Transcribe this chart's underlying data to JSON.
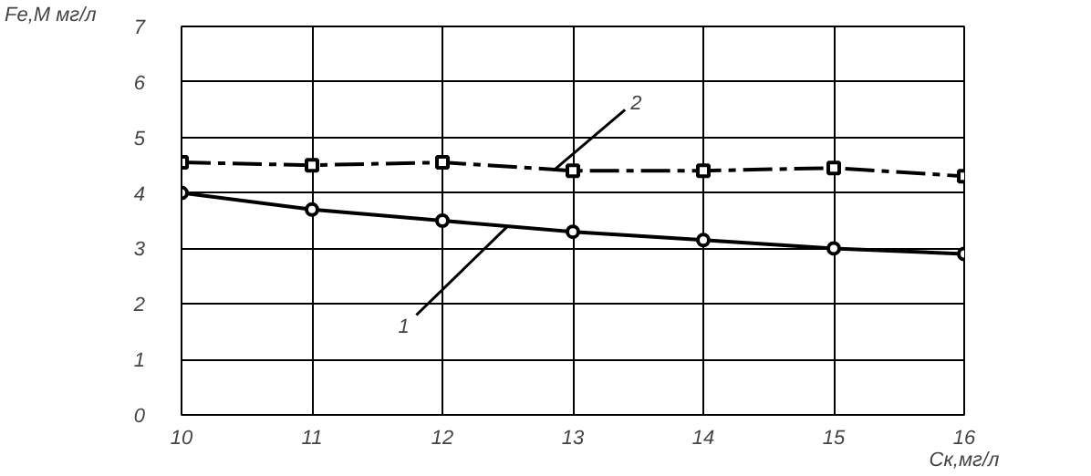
{
  "chart_data": {
    "type": "line",
    "xlabel": "Cк,мг/л",
    "ylabel": "Fe,M мг/л",
    "x": [
      10,
      11,
      12,
      13,
      14,
      15,
      16
    ],
    "series": [
      {
        "name": "1",
        "color": "#000000",
        "marker": "circle",
        "line_style": "solid",
        "values": [
          4.0,
          3.7,
          3.5,
          3.3,
          3.15,
          3.0,
          2.9
        ]
      },
      {
        "name": "2",
        "color": "#000000",
        "marker": "square",
        "line_style": "dashed",
        "values": [
          4.55,
          4.5,
          4.55,
          4.4,
          4.4,
          4.45,
          4.3
        ]
      }
    ],
    "xlim": [
      10,
      16
    ],
    "ylim": [
      0,
      7
    ],
    "xticks": [
      10,
      11,
      12,
      13,
      14,
      15,
      16
    ],
    "yticks": [
      0,
      1,
      2,
      3,
      4,
      5,
      6,
      7
    ],
    "grid": true
  }
}
